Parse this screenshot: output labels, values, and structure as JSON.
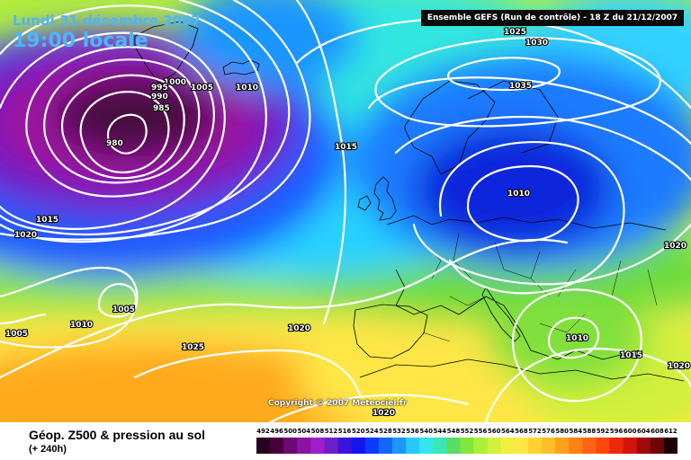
{
  "header": {
    "date_label": "Lundi 31 décembre 2007",
    "time_label": "19:00 locale",
    "model_label": "Ensemble GEFS (Run de contrôle) - 18 Z du 21/12/2007"
  },
  "map": {
    "copyright": "Copyright © 2007 Meteociel.fr",
    "isobar_labels": [
      {
        "id": "iso-1025-top",
        "text": "1025"
      },
      {
        "id": "iso-1030-top",
        "text": "1030"
      },
      {
        "id": "iso-1035",
        "text": "1035"
      },
      {
        "id": "iso-1000",
        "text": "1000"
      },
      {
        "id": "iso-995",
        "text": "995"
      },
      {
        "id": "iso-990",
        "text": "990"
      },
      {
        "id": "iso-985",
        "text": "985"
      },
      {
        "id": "iso-1005-north",
        "text": "1005"
      },
      {
        "id": "iso-1010-north",
        "text": "1010"
      },
      {
        "id": "iso-980",
        "text": "980"
      },
      {
        "id": "iso-1015-center",
        "text": "1015"
      },
      {
        "id": "iso-1010-east",
        "text": "1010"
      },
      {
        "id": "iso-1015-west",
        "text": "1015"
      },
      {
        "id": "iso-1020-west",
        "text": "1020"
      },
      {
        "id": "iso-1020-east",
        "text": "1020"
      },
      {
        "id": "iso-1005-mid",
        "text": "1005"
      },
      {
        "id": "iso-1010-sw",
        "text": "1010"
      },
      {
        "id": "iso-1005-sw",
        "text": "1005"
      },
      {
        "id": "iso-1020-center",
        "text": "1020"
      },
      {
        "id": "iso-1025-sw",
        "text": "1025"
      },
      {
        "id": "iso-1010-med",
        "text": "1010"
      },
      {
        "id": "iso-1015-se",
        "text": "1015"
      },
      {
        "id": "iso-1020-se",
        "text": "1020"
      },
      {
        "id": "iso-1020-bottom",
        "text": "1020"
      }
    ],
    "colors": {
      "low_core": "#4a0a40",
      "low": "#9b14a0",
      "deep_blue": "#0a1ed8",
      "blue": "#1464ff",
      "cyan": "#28d2ff",
      "green": "#6edc3c",
      "yellow_green": "#c8f03c",
      "yellow": "#ffe646",
      "orange": "#ffaa1e"
    }
  },
  "legend": {
    "field_title": "Géop. Z500 & pression au sol",
    "lead_time": "(+ 240h)",
    "scale_ticks": [
      "492",
      "496",
      "500",
      "504",
      "508",
      "512",
      "516",
      "520",
      "524",
      "528",
      "532",
      "536",
      "540",
      "544",
      "548",
      "552",
      "556",
      "560",
      "564",
      "568",
      "572",
      "576",
      "580",
      "584",
      "588",
      "592",
      "596",
      "600",
      "604",
      "608",
      "612"
    ],
    "scale_colors": [
      "#28001e",
      "#46003c",
      "#6e0a78",
      "#8c14a0",
      "#a01ec8",
      "#6e1ec8",
      "#3c14dc",
      "#1414f0",
      "#0a3cff",
      "#1464ff",
      "#1e96ff",
      "#28c8ff",
      "#32e6f0",
      "#3ce6b4",
      "#5adc64",
      "#82e63c",
      "#aaf03c",
      "#d2f03c",
      "#f0f03c",
      "#ffe646",
      "#ffd232",
      "#ffbe28",
      "#ffa01e",
      "#ff8214",
      "#ff6414",
      "#ff460a",
      "#f0280a",
      "#d2140a",
      "#a00a0a",
      "#6e0505",
      "#1e0000"
    ]
  }
}
